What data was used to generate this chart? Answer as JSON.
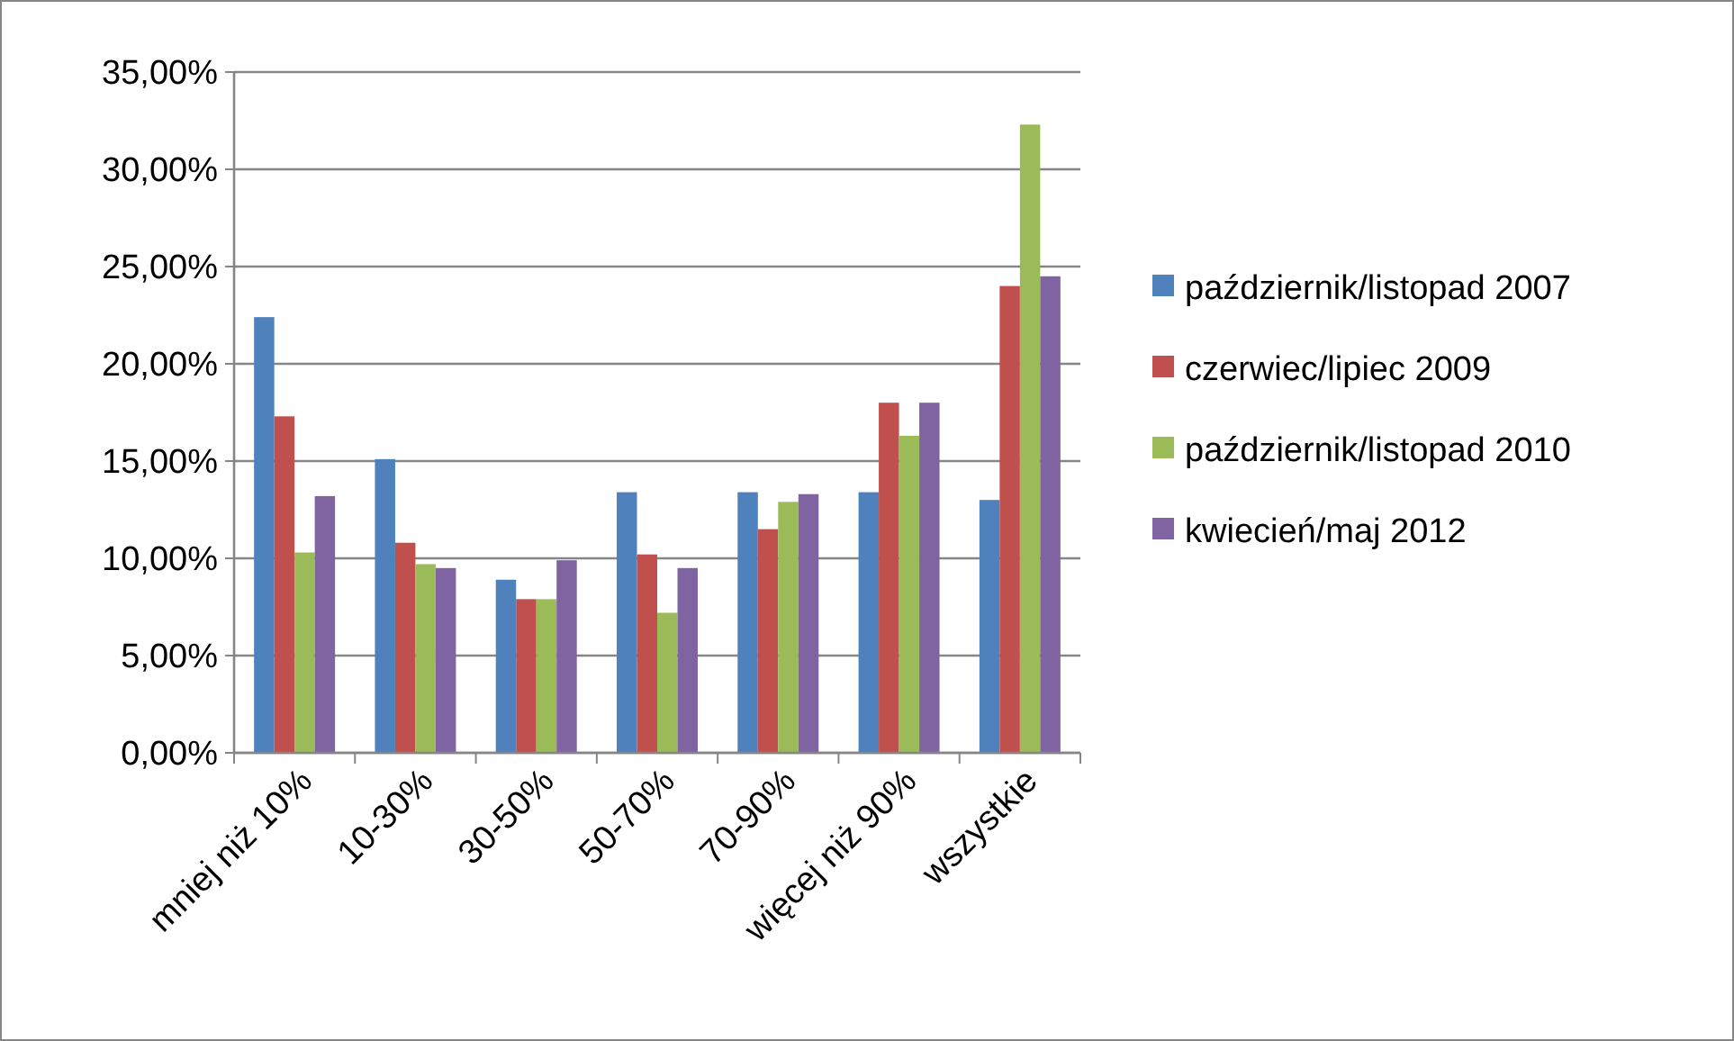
{
  "chart_data": {
    "type": "bar",
    "categories": [
      "mniej niż 10%",
      "10-30%",
      "30-50%",
      "50-70%",
      "70-90%",
      "więcej niż 90%",
      "wszystkie"
    ],
    "series": [
      {
        "name": "październik/listopad 2007",
        "color": "#4f81bd",
        "values": [
          22.4,
          15.1,
          8.9,
          13.4,
          13.4,
          13.4,
          13.0
        ]
      },
      {
        "name": "czerwiec/lipiec 2009",
        "color": "#c0504d",
        "values": [
          17.3,
          10.8,
          7.9,
          10.2,
          11.5,
          18.0,
          24.0
        ]
      },
      {
        "name": "październik/listopad 2010",
        "color": "#9bbb59",
        "values": [
          10.3,
          9.7,
          7.9,
          7.2,
          12.9,
          16.3,
          32.3
        ]
      },
      {
        "name": "kwiecień/maj 2012",
        "color": "#8064a2",
        "values": [
          13.2,
          9.5,
          9.9,
          9.5,
          13.3,
          18.0,
          24.5
        ]
      }
    ],
    "ylim": [
      0,
      35
    ],
    "yticks": [
      {
        "value": 0,
        "label": "0,00%"
      },
      {
        "value": 5,
        "label": "5,00%"
      },
      {
        "value": 10,
        "label": "10,00%"
      },
      {
        "value": 15,
        "label": "15,00%"
      },
      {
        "value": 20,
        "label": "20,00%"
      },
      {
        "value": 25,
        "label": "25,00%"
      },
      {
        "value": 30,
        "label": "30,00%"
      },
      {
        "value": 35,
        "label": "35,00%"
      }
    ],
    "grid": "y",
    "legend": "right"
  }
}
